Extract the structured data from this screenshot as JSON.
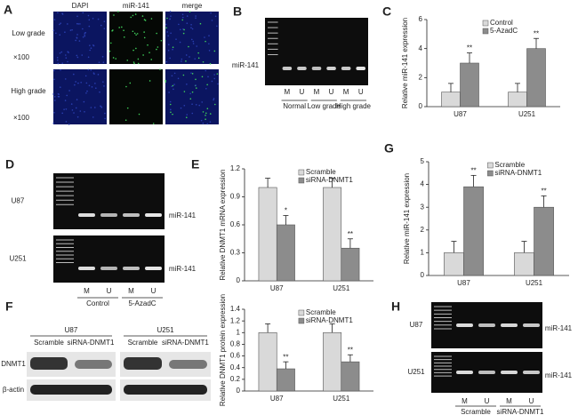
{
  "panel_labels": [
    "A",
    "B",
    "C",
    "D",
    "E",
    "F",
    "G",
    "H"
  ],
  "panel_a": {
    "columns": [
      "DAPI",
      "miR-141",
      "merge"
    ],
    "rows": [
      "Low grade",
      "High grade"
    ],
    "magnification": "×100"
  },
  "panel_b": {
    "band": "miR-141",
    "lanes": [
      "M",
      "U",
      "M",
      "U",
      "M",
      "U"
    ],
    "groups": [
      "Normal",
      "Low grade",
      "High grade"
    ]
  },
  "panel_d": {
    "rows": [
      "U87",
      "U251"
    ],
    "band": "miR-141",
    "lanes": [
      "M",
      "U",
      "M",
      "U"
    ],
    "groups": [
      "Control",
      "5-AzadC"
    ]
  },
  "panel_f": {
    "cells": [
      "U87",
      "U251"
    ],
    "lanes": [
      "Scramble",
      "siRNA-DNMT1",
      "Scramble",
      "siRNA-DNMT1"
    ],
    "proteins": [
      "DNMT1",
      "β-actin"
    ]
  },
  "panel_h": {
    "rows": [
      "U87",
      "U251"
    ],
    "band": "miR-141",
    "lanes": [
      "M",
      "U",
      "M",
      "U"
    ],
    "groups": [
      "Scramble",
      "siRNA-DNMT1"
    ]
  },
  "chart_data": [
    {
      "type": "bar",
      "ylabel": "Relative miR-141 expression",
      "categories": [
        "U87",
        "U251"
      ],
      "ylim": [
        0,
        6
      ],
      "yticks": [
        0,
        2,
        4,
        6
      ],
      "series": [
        {
          "name": "Control",
          "color": "#d9d9d9",
          "values": [
            1,
            1
          ],
          "errors": [
            0.6,
            0.6
          ]
        },
        {
          "name": "5-AzadC",
          "color": "#8c8c8c",
          "values": [
            3,
            4
          ],
          "errors": [
            0.7,
            0.7
          ],
          "annotations": [
            "**",
            "**"
          ]
        }
      ]
    },
    {
      "type": "bar",
      "ylabel": "Relative DNMT1 mRNA expression",
      "categories": [
        "U87",
        "U251"
      ],
      "ylim": [
        0,
        1.2
      ],
      "yticks": [
        0,
        0.3,
        0.6,
        0.9,
        1.2
      ],
      "series": [
        {
          "name": "Scramble",
          "color": "#d9d9d9",
          "values": [
            1,
            1
          ],
          "errors": [
            0.1,
            0.1
          ]
        },
        {
          "name": "siRNA-DNMT1",
          "color": "#8c8c8c",
          "values": [
            0.6,
            0.35
          ],
          "errors": [
            0.1,
            0.1
          ],
          "annotations": [
            "*",
            "**"
          ]
        }
      ]
    },
    {
      "type": "bar",
      "ylabel": "Relative miR-141 expression",
      "categories": [
        "U87",
        "U251"
      ],
      "ylim": [
        0,
        5
      ],
      "yticks": [
        0,
        1,
        2,
        3,
        4,
        5
      ],
      "series": [
        {
          "name": "Scramble",
          "color": "#d9d9d9",
          "values": [
            1,
            1
          ],
          "errors": [
            0.5,
            0.5
          ]
        },
        {
          "name": "siRNA-DNMT1",
          "color": "#8c8c8c",
          "values": [
            3.9,
            3
          ],
          "errors": [
            0.5,
            0.5
          ],
          "annotations": [
            "**",
            "**"
          ]
        }
      ]
    },
    {
      "type": "bar",
      "ylabel": "Relative DNMT1 protein expression",
      "categories": [
        "U87",
        "U251"
      ],
      "ylim": [
        0,
        1.4
      ],
      "yticks": [
        0,
        0.2,
        0.4,
        0.6,
        0.8,
        1,
        1.2,
        1.4
      ],
      "series": [
        {
          "name": "Scramble",
          "color": "#d9d9d9",
          "values": [
            1,
            1
          ],
          "errors": [
            0.15,
            0.15
          ]
        },
        {
          "name": "siRNA-DNMT1",
          "color": "#8c8c8c",
          "values": [
            0.38,
            0.5
          ],
          "errors": [
            0.12,
            0.12
          ],
          "annotations": [
            "**",
            "**"
          ]
        }
      ]
    }
  ]
}
